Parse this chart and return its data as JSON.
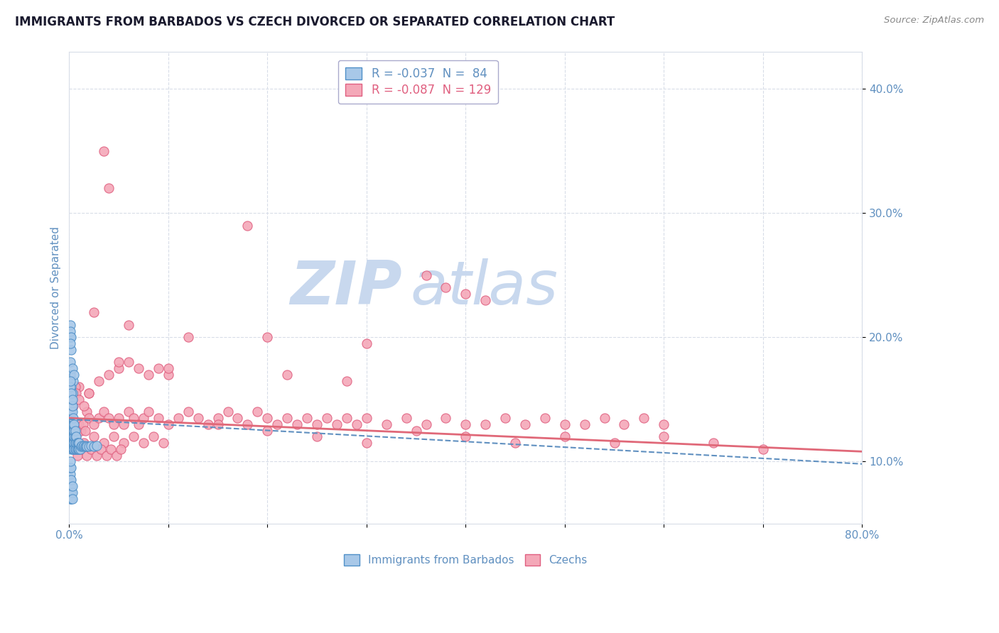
{
  "title": "IMMIGRANTS FROM BARBADOS VS CZECH DIVORCED OR SEPARATED CORRELATION CHART",
  "source_text": "Source: ZipAtlas.com",
  "ylabel": "Divorced or Separated",
  "xlim": [
    0.0,
    0.8
  ],
  "ylim": [
    0.05,
    0.43
  ],
  "xticks": [
    0.0,
    0.1,
    0.2,
    0.3,
    0.4,
    0.5,
    0.6,
    0.7,
    0.8
  ],
  "xticklabels": [
    "0.0%",
    "",
    "",
    "",
    "",
    "",
    "",
    "",
    "80.0%"
  ],
  "ytick_vals": [
    0.1,
    0.2,
    0.3,
    0.4
  ],
  "watermark_zip": "ZIP",
  "watermark_atlas": "atlas",
  "blue_color": "#a8c8e8",
  "pink_color": "#f4a8b8",
  "blue_edge_color": "#5090c8",
  "pink_edge_color": "#e06080",
  "blue_trend_color": "#6090c0",
  "pink_trend_color": "#e06878",
  "grid_color": "#d8dde8",
  "axis_color": "#6090c0",
  "watermark_color": "#c8d8ee",
  "legend_r1": "R = -0.037",
  "legend_n1": "N =  84",
  "legend_r2": "R = -0.087",
  "legend_n2": "N = 129",
  "legend_label1": "Immigrants from Barbados",
  "legend_label2": "Czechs",
  "blue_trend_start_y": 0.134,
  "blue_trend_end_y": 0.098,
  "pink_trend_start_y": 0.135,
  "pink_trend_end_y": 0.108,
  "blue_scatter_x": [
    0.001,
    0.001,
    0.001,
    0.001,
    0.001,
    0.001,
    0.001,
    0.001,
    0.002,
    0.002,
    0.002,
    0.002,
    0.002,
    0.002,
    0.002,
    0.002,
    0.002,
    0.003,
    0.003,
    0.003,
    0.003,
    0.003,
    0.003,
    0.003,
    0.003,
    0.004,
    0.004,
    0.004,
    0.004,
    0.004,
    0.004,
    0.005,
    0.005,
    0.005,
    0.005,
    0.005,
    0.006,
    0.006,
    0.006,
    0.006,
    0.007,
    0.007,
    0.007,
    0.008,
    0.008,
    0.009,
    0.009,
    0.01,
    0.01,
    0.011,
    0.012,
    0.013,
    0.014,
    0.015,
    0.016,
    0.017,
    0.018,
    0.02,
    0.022,
    0.025,
    0.028,
    0.001,
    0.001,
    0.001,
    0.002,
    0.002,
    0.003,
    0.003,
    0.004,
    0.005
  ],
  "blue_scatter_y": [
    0.13,
    0.135,
    0.14,
    0.125,
    0.12,
    0.115,
    0.145,
    0.15,
    0.13,
    0.125,
    0.12,
    0.115,
    0.11,
    0.135,
    0.14,
    0.145,
    0.15,
    0.125,
    0.12,
    0.115,
    0.11,
    0.13,
    0.135,
    0.14,
    0.145,
    0.12,
    0.115,
    0.11,
    0.125,
    0.13,
    0.135,
    0.115,
    0.11,
    0.12,
    0.125,
    0.13,
    0.11,
    0.115,
    0.12,
    0.125,
    0.11,
    0.115,
    0.12,
    0.11,
    0.115,
    0.11,
    0.115,
    0.11,
    0.115,
    0.11,
    0.112,
    0.113,
    0.112,
    0.113,
    0.112,
    0.113,
    0.112,
    0.112,
    0.113,
    0.112,
    0.113,
    0.18,
    0.17,
    0.2,
    0.19,
    0.16,
    0.175,
    0.155,
    0.165,
    0.17
  ],
  "blue_scatter_x2": [
    0.001,
    0.001,
    0.001,
    0.001,
    0.001,
    0.002,
    0.002,
    0.002,
    0.002,
    0.003,
    0.003,
    0.003,
    0.001,
    0.002,
    0.001,
    0.001,
    0.002,
    0.003,
    0.001,
    0.001,
    0.001,
    0.002,
    0.001
  ],
  "blue_scatter_y2": [
    0.075,
    0.08,
    0.085,
    0.07,
    0.09,
    0.075,
    0.08,
    0.07,
    0.085,
    0.075,
    0.07,
    0.08,
    0.095,
    0.095,
    0.1,
    0.16,
    0.155,
    0.15,
    0.165,
    0.21,
    0.205,
    0.2,
    0.195
  ],
  "pink_scatter_x": [
    0.003,
    0.004,
    0.005,
    0.006,
    0.007,
    0.008,
    0.009,
    0.01,
    0.012,
    0.014,
    0.016,
    0.018,
    0.02,
    0.025,
    0.03,
    0.035,
    0.04,
    0.045,
    0.05,
    0.055,
    0.06,
    0.065,
    0.07,
    0.075,
    0.08,
    0.09,
    0.1,
    0.11,
    0.12,
    0.13,
    0.14,
    0.15,
    0.16,
    0.17,
    0.18,
    0.19,
    0.2,
    0.21,
    0.22,
    0.23,
    0.24,
    0.25,
    0.26,
    0.27,
    0.28,
    0.29,
    0.3,
    0.32,
    0.34,
    0.36,
    0.38,
    0.4,
    0.42,
    0.44,
    0.46,
    0.48,
    0.5,
    0.52,
    0.54,
    0.56,
    0.58,
    0.6,
    0.01,
    0.02,
    0.03,
    0.04,
    0.05,
    0.06,
    0.07,
    0.08,
    0.09,
    0.1,
    0.005,
    0.015,
    0.025,
    0.035,
    0.045,
    0.055,
    0.065,
    0.075,
    0.085,
    0.095,
    0.008,
    0.012,
    0.018,
    0.022,
    0.028,
    0.032,
    0.038,
    0.042,
    0.048,
    0.052,
    0.15,
    0.2,
    0.25,
    0.3,
    0.35,
    0.4,
    0.45,
    0.5,
    0.55,
    0.6,
    0.65,
    0.7,
    0.003,
    0.004,
    0.005,
    0.006,
    0.007,
    0.01,
    0.015,
    0.02
  ],
  "pink_scatter_y": [
    0.13,
    0.125,
    0.13,
    0.125,
    0.12,
    0.13,
    0.125,
    0.13,
    0.125,
    0.13,
    0.125,
    0.14,
    0.135,
    0.13,
    0.135,
    0.14,
    0.135,
    0.13,
    0.135,
    0.13,
    0.14,
    0.135,
    0.13,
    0.135,
    0.14,
    0.135,
    0.13,
    0.135,
    0.14,
    0.135,
    0.13,
    0.135,
    0.14,
    0.135,
    0.13,
    0.14,
    0.135,
    0.13,
    0.135,
    0.13,
    0.135,
    0.13,
    0.135,
    0.13,
    0.135,
    0.13,
    0.135,
    0.13,
    0.135,
    0.13,
    0.135,
    0.13,
    0.13,
    0.135,
    0.13,
    0.135,
    0.13,
    0.13,
    0.135,
    0.13,
    0.135,
    0.13,
    0.16,
    0.155,
    0.165,
    0.17,
    0.175,
    0.18,
    0.175,
    0.17,
    0.175,
    0.17,
    0.12,
    0.115,
    0.12,
    0.115,
    0.12,
    0.115,
    0.12,
    0.115,
    0.12,
    0.115,
    0.105,
    0.11,
    0.105,
    0.11,
    0.105,
    0.11,
    0.105,
    0.11,
    0.105,
    0.11,
    0.13,
    0.125,
    0.12,
    0.115,
    0.125,
    0.12,
    0.115,
    0.12,
    0.115,
    0.12,
    0.115,
    0.11,
    0.15,
    0.145,
    0.155,
    0.16,
    0.155,
    0.15,
    0.145,
    0.155
  ],
  "pink_outlier_x": [
    0.035,
    0.04,
    0.18,
    0.36,
    0.38,
    0.4,
    0.42,
    0.025,
    0.06,
    0.12,
    0.2,
    0.3,
    0.05,
    0.1,
    0.22,
    0.28
  ],
  "pink_outlier_y": [
    0.35,
    0.32,
    0.29,
    0.25,
    0.24,
    0.235,
    0.23,
    0.22,
    0.21,
    0.2,
    0.2,
    0.195,
    0.18,
    0.175,
    0.17,
    0.165
  ]
}
